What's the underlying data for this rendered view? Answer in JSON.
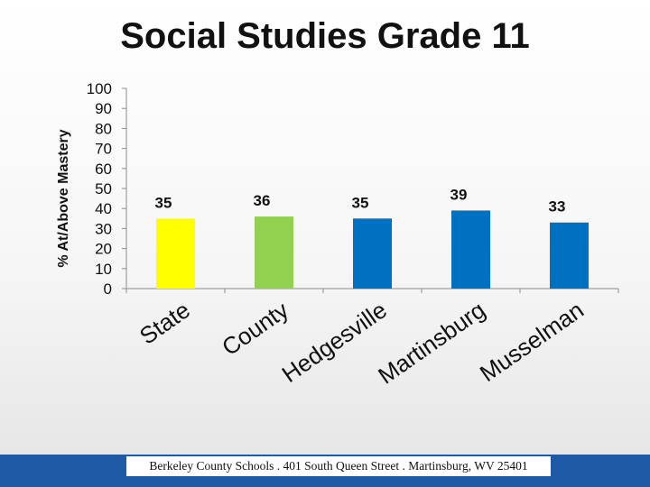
{
  "footer": {
    "text": "Berkeley County Schools . 401 South Queen Street . Martinsburg, WV  25401"
  },
  "chart_data": {
    "type": "bar",
    "title": "Social Studies Grade 11",
    "xlabel": "",
    "ylabel": "% At/Above Mastery",
    "ylim": [
      0,
      100
    ],
    "yticks": [
      0,
      10,
      20,
      30,
      40,
      50,
      60,
      70,
      80,
      90,
      100
    ],
    "grid": false,
    "categories": [
      "State",
      "County",
      "Hedgesville",
      "Martinsburg",
      "Musselman"
    ],
    "values": [
      35,
      36,
      35,
      39,
      33
    ],
    "colors": [
      "#ffff00",
      "#92d050",
      "#0070c0",
      "#0070c0",
      "#0070c0"
    ]
  }
}
